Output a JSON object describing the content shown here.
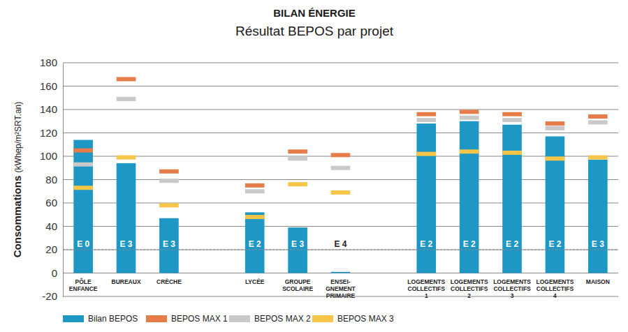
{
  "chart_data": {
    "type": "bar",
    "title": "BILAN ÉNERGIE",
    "subtitle": "Résultat BEPOS par projet",
    "y_label": "Consommations (kWhep/m²SRT.an)",
    "categories": [
      "PÔLE\nENFANCE",
      "BUREAUX",
      "CRÈCHE",
      null,
      "LYCÉE",
      "GROUPE\nSCOLAIRE",
      "ENSEI-\nGNEMENT\nPRIMAIRE",
      null,
      "LOGEMENTS\nCOLLECTIFS\n1",
      "LOGEMENTS\nCOLLECTIFS\n2",
      "LOGEMENTS\nCOLLECTIFS\n3",
      "LOGEMENTS\nCOLLECTIFS\n4",
      "MAISON"
    ],
    "series": [
      {
        "name": "Bilan BEPOS",
        "type": "bar",
        "color": "#1e97c5",
        "values": [
          114,
          94,
          47,
          null,
          52,
          39,
          1,
          null,
          128,
          130,
          127,
          117,
          97
        ]
      },
      {
        "name": "BEPOS MAX 1",
        "type": "scatter",
        "marker": "dash",
        "color": "#e57c4a",
        "values": [
          105,
          166,
          87,
          null,
          75,
          104,
          101,
          null,
          136,
          138,
          136,
          128,
          134
        ]
      },
      {
        "name": "BEPOS MAX 2",
        "type": "scatter",
        "marker": "dash",
        "color": "#c9c9c9",
        "values": [
          93,
          149,
          79,
          null,
          70,
          98,
          90,
          null,
          131,
          133,
          131,
          124,
          129
        ]
      },
      {
        "name": "BEPOS MAX 3",
        "type": "scatter",
        "marker": "dash",
        "color": "#f7c548",
        "values": [
          73,
          99,
          58,
          null,
          48,
          76,
          69,
          null,
          102,
          104,
          103,
          98,
          99
        ]
      }
    ],
    "annotations": [
      "E 0",
      "E 3",
      "E 3",
      null,
      "E 2",
      "E 3",
      "E 4",
      null,
      "E 2",
      "E 2",
      "E 2",
      "E 2",
      "E 3"
    ],
    "hline": 20,
    "ylim": [
      -20,
      180
    ],
    "yticks": [
      -20,
      0,
      20,
      40,
      60,
      80,
      100,
      120,
      140,
      160,
      180
    ],
    "grid": true,
    "legend": "bottom"
  }
}
